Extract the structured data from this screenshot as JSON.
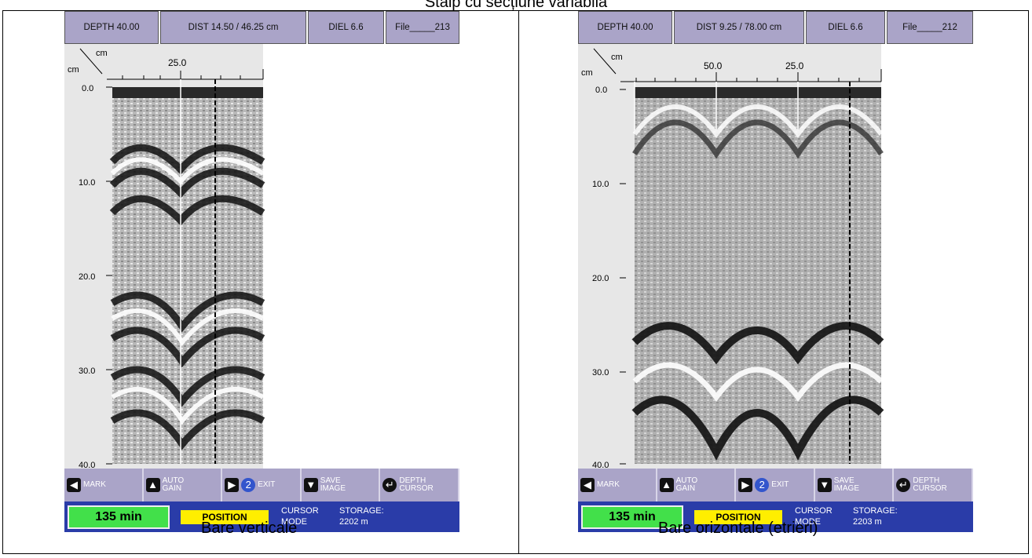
{
  "title": "Stâlp cu secțiune variabilă",
  "left": {
    "depth": "DEPTH 40.00",
    "dist": "DIST 14.50 / 46.25 cm",
    "diel": "DIEL 6.6",
    "file": "File_____213",
    "axis_unit": "cm",
    "axis_x": [
      "25.0"
    ],
    "axis_y": [
      "0.0",
      "10.0",
      "20.0",
      "30.0",
      "40.0"
    ],
    "time": "135 min",
    "position": "POSITION",
    "cursor": "CURSOR",
    "mode": "MODE",
    "storage": "STORAGE:",
    "storage_val": "2202 m",
    "caption": "Bare verticale"
  },
  "right": {
    "depth": "DEPTH 40.00",
    "dist": "DIST 9.25 / 78.00 cm",
    "diel": "DIEL 6.6",
    "file": "File_____212",
    "axis_unit": "cm",
    "axis_x": [
      "50.0",
      "25.0"
    ],
    "axis_y": [
      "0.0",
      "10.0",
      "20.0",
      "30.0",
      "40.0"
    ],
    "time": "135 min",
    "position": "POSITION",
    "cursor": "CURSOR",
    "mode": "MODE",
    "storage": "STORAGE:",
    "storage_val": "2203 m",
    "caption": "Bare orizontale (etrieri)"
  },
  "buttons": {
    "mark": "MARK",
    "auto": "AUTO",
    "gain": "GAIN",
    "exit": "EXIT",
    "save": "SAVE",
    "image": "IMAGE",
    "depth": "DEPTH",
    "cursor": "CURSOR",
    "num": "2"
  }
}
